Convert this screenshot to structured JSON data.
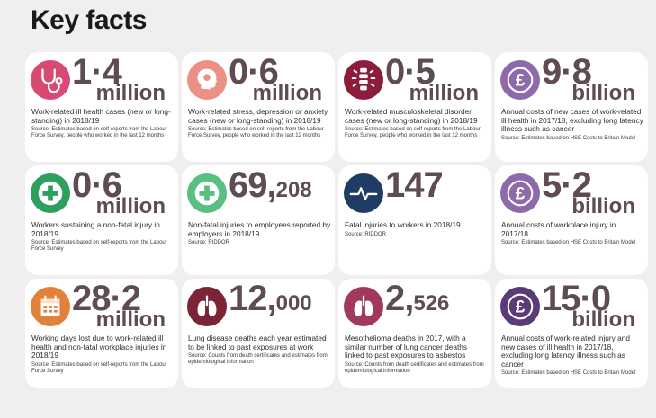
{
  "title": "Key facts",
  "cards": [
    {
      "number": "1·4",
      "suffix": "",
      "unit": "million",
      "desc": "Work-related ill health cases (new or long-standing) in 2018/19",
      "source": "Source: Estimates based on self-reports from the Labour Force Survey, people who worked in the last 12 months",
      "icon": "stethoscope-icon",
      "color": "#d84a72"
    },
    {
      "number": "0·6",
      "suffix": "",
      "unit": "million",
      "desc": "Work-related stress, depression or anxiety cases (new or long-standing) in 2018/19",
      "source": "Source: Estimates based on self-reports from the Labour Force Survey, people who worked in the last 12 months",
      "icon": "head-icon",
      "color": "#ec8f86"
    },
    {
      "number": "0·5",
      "suffix": "",
      "unit": "million",
      "desc": "Work-related musculoskeletal disorder cases (new or long-standing) in 2018/19",
      "source": "Source: Estimates based on self-reports from the Labour Force Survey, people who worked in the last 12 months",
      "icon": "spine-icon",
      "color": "#8b1d3a"
    },
    {
      "number": "9·8",
      "suffix": "",
      "unit": "billion",
      "desc": "Annual costs of new cases of work-related ill health in 2017/18, excluding long latency illness such as cancer",
      "source": "Source: Estimates based on HSE Costs to Britain Model",
      "icon": "pound-icon",
      "color": "#8c6aab"
    },
    {
      "number": "0·6",
      "suffix": "",
      "unit": "million",
      "desc": "Workers sustaining a non-fatal injury in 2018/19",
      "source": "Source: Estimates based on self-reports from the Labour Force Survey",
      "icon": "first-aid-icon",
      "color": "#2e9f5c"
    },
    {
      "number": "69,",
      "suffix": "208",
      "unit": "",
      "desc": "Non-fatal injuries to employees reported by employers in 2018/19",
      "source": "Source: RIDDOR",
      "icon": "first-aid-icon",
      "color": "#5bbf83"
    },
    {
      "number": "147",
      "suffix": "",
      "unit": "",
      "desc": "Fatal injuries to workers in 2018/19",
      "source": "Source: RIDDOR",
      "icon": "heartbeat-icon",
      "color": "#1f3d64"
    },
    {
      "number": "5·2",
      "suffix": "",
      "unit": "billion",
      "desc": "Annual costs of workplace injury in 2017/18",
      "source": "Source: Estimates based on HSE Costs to Britain Model",
      "icon": "pound-icon",
      "color": "#8c6aab"
    },
    {
      "number": "28·2",
      "suffix": "",
      "unit": "million",
      "desc": "Working days lost due to work-related ill health and non-fatal workplace injuries in 2018/19",
      "source": "Source: Estimates based on self-reports from the Labour Force Survey",
      "icon": "calendar-icon",
      "color": "#e2823a"
    },
    {
      "number": "12,",
      "suffix": "000",
      "unit": "",
      "desc": "Lung disease deaths each year estimated to be linked to past exposures at work",
      "source": "Source: Counts from death certificates and estimates from epidemiological information",
      "icon": "lungs-icon",
      "color": "#7c2335"
    },
    {
      "number": "2,",
      "suffix": "526",
      "unit": "",
      "desc": "Mesothelioma deaths in 2017, with a similar number of lung cancer deaths linked to past exposures to asbestos",
      "source": "Source: Counts from death certificates and estimates from epidemiological information",
      "icon": "lungs-icon",
      "color": "#a2395a"
    },
    {
      "number": "15·0",
      "suffix": "",
      "unit": "billion",
      "desc": "Annual costs of work-related injury and new cases of ill health in 2017/18, excluding long latency illness such as cancer",
      "source": "Source: Estimates based on HSE Costs to Britain Model",
      "icon": "pound-icon",
      "color": "#5a3a77"
    }
  ]
}
